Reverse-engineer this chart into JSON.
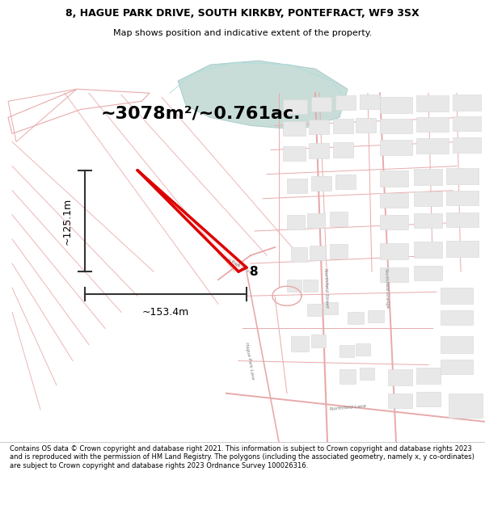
{
  "title_line1": "8, HAGUE PARK DRIVE, SOUTH KIRKBY, PONTEFRACT, WF9 3SX",
  "title_line2": "Map shows position and indicative extent of the property.",
  "area_text": "~3078m²/~0.761ac.",
  "dim_height": "~125.1m",
  "dim_width": "~153.4m",
  "property_label": "8",
  "footer_text": "Contains OS data © Crown copyright and database right 2021. This information is subject to Crown copyright and database rights 2023 and is reproduced with the permission of HM Land Registry. The polygons (including the associated geometry, namely x, y co-ordinates) are subject to Crown copyright and database rights 2023 Ordnance Survey 100026316.",
  "bg_color": "#ffffff",
  "lc": "#e8aaaa",
  "road_c": "#e8aaaa",
  "bld_fill": "#e8e8e8",
  "bld_edge": "#d8d8d8",
  "park_fill": "#c8ddd8",
  "park_edge": "#aacccc",
  "red_line": "#dd0000",
  "dim_line": "#333333",
  "title_fs": 9.0,
  "sub_fs": 8.0,
  "footer_fs": 6.0,
  "area_fs": 16,
  "dim_fs": 9,
  "prop_fs": 11
}
